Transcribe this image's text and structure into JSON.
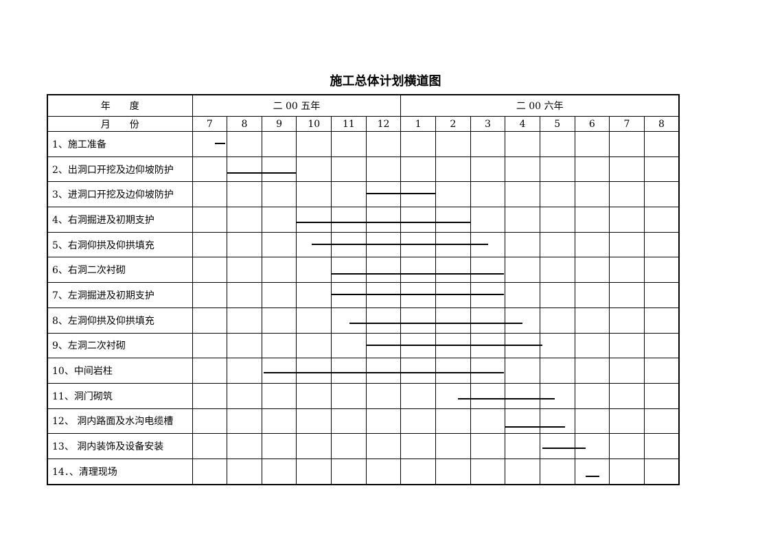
{
  "title": "施工总体计划横道图",
  "header": {
    "year_label": "年　　度",
    "month_label": "月　　份",
    "years": [
      {
        "label": "二 00 五年",
        "span": 6
      },
      {
        "label": "二 00 六年",
        "span": 8
      }
    ],
    "months": [
      "7",
      "8",
      "9",
      "10",
      "11",
      "12",
      "1",
      "2",
      "3",
      "4",
      "5",
      "6",
      "7",
      "8"
    ]
  },
  "chart_data": {
    "type": "gantt",
    "title": "施工总体计划横道图",
    "x_range": [
      "2005-07-01",
      "2006-09-01"
    ],
    "tasks": [
      {
        "label": "1、施工准备",
        "start": "2005-07-22",
        "end": "2005-07-31"
      },
      {
        "label": "2、出洞口开挖及边仰坡防护",
        "start": "2005-08-01",
        "end": "2005-10-01"
      },
      {
        "label": "3、进洞口开挖及边仰坡防护",
        "start": "2005-12-01",
        "end": "2006-02-01"
      },
      {
        "label": "4、右洞掘进及初期支护",
        "start": "2005-10-01",
        "end": "2006-03-01"
      },
      {
        "label": "5、右洞仰拱及仰拱填充",
        "start": "2005-10-15",
        "end": "2006-03-17"
      },
      {
        "label": "6、右洞二次衬砌",
        "start": "2005-11-01",
        "end": "2006-03-31"
      },
      {
        "label": "7、左洞掘进及初期支护",
        "start": "2005-11-01",
        "end": "2006-03-31"
      },
      {
        "label": "8、左洞仰拱及仰拱填充",
        "start": "2005-11-17",
        "end": "2006-04-16"
      },
      {
        "label": "9、左洞二次衬砌",
        "start": "2005-12-01",
        "end": "2006-05-03"
      },
      {
        "label": "10、中间岩柱",
        "start": "2005-09-03",
        "end": "2006-03-31"
      },
      {
        "label": "11、洞门砌筑",
        "start": "2006-02-19",
        "end": "2006-05-14"
      },
      {
        "label": "12、 洞内路面及水沟电缆槽",
        "start": "2006-04-01",
        "end": "2006-05-23"
      },
      {
        "label": "13、 洞内装饰及设备安装",
        "start": "2006-05-03",
        "end": "2006-06-10"
      },
      {
        "label": "14．、清理现场",
        "start": "2006-06-10",
        "end": "2006-06-22"
      }
    ]
  }
}
